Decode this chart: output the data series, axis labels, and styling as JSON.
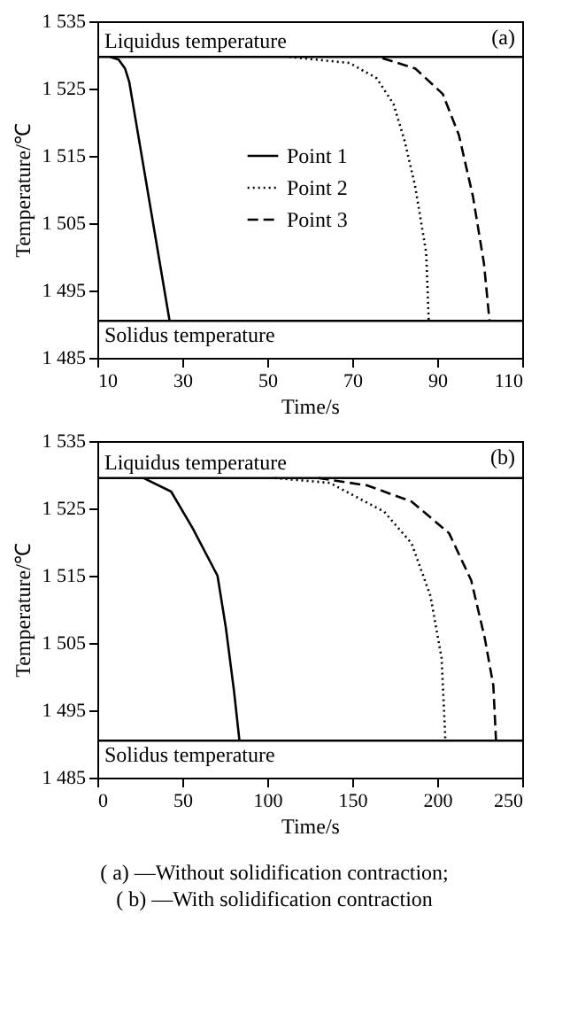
{
  "chart_data": [
    {
      "type": "line",
      "xlabel": "Time/s",
      "ylabel": "Temperature/℃",
      "xlim": [
        10,
        110
      ],
      "xticks": [
        10,
        30,
        50,
        70,
        90,
        110
      ],
      "ylim": [
        1485,
        1535
      ],
      "yticks": [
        {
          "value": 1485,
          "label": "1 485"
        },
        {
          "value": 1495,
          "label": "1 495"
        },
        {
          "value": 1505,
          "label": "1 505"
        },
        {
          "value": 1515,
          "label": "1 515"
        },
        {
          "value": 1525,
          "label": "1 525"
        },
        {
          "value": 1535,
          "label": "1 535"
        }
      ],
      "grid": false,
      "legend": "center",
      "marker": "none",
      "annotations": [
        "(a)"
      ],
      "ref_lines": [
        {
          "axis": "y",
          "value": 1529.7,
          "label": "Liquidus temperature",
          "color": "#000000"
        },
        {
          "axis": "y",
          "value": 1490.5,
          "label": "Solidus temperature",
          "color": "#000000"
        }
      ],
      "series": [
        {
          "name": "Point 1",
          "color": "#000000",
          "line_style": "solid",
          "x": [
            13,
            15,
            16.5,
            17.5,
            27
          ],
          "values": [
            1529.7,
            1529.3,
            1528,
            1526,
            1490.5
          ]
        },
        {
          "name": "Point 2",
          "color": "#000000",
          "line_style": "dotted",
          "x": [
            55.2,
            69.4,
            75.8,
            79.7,
            82.3,
            84.8,
            87.4,
            88
          ],
          "values": [
            1529.7,
            1528.8,
            1526.5,
            1522.7,
            1517.3,
            1510.5,
            1500.6,
            1490.5
          ]
        },
        {
          "name": "Point 3",
          "color": "#000000",
          "line_style": "dashed",
          "x": [
            77.1,
            84.8,
            91.3,
            95.1,
            98.4,
            101,
            102.3
          ],
          "values": [
            1529.5,
            1528,
            1524.2,
            1518.1,
            1509,
            1499,
            1490.5
          ]
        }
      ]
    },
    {
      "type": "line",
      "xlabel": "Time/s",
      "ylabel": "Temperature/℃",
      "xlim": [
        0,
        250
      ],
      "xticks": [
        0,
        50,
        100,
        150,
        200,
        250
      ],
      "ylim": [
        1485,
        1535
      ],
      "yticks": [
        {
          "value": 1485,
          "label": "1 485"
        },
        {
          "value": 1495,
          "label": "1 495"
        },
        {
          "value": 1505,
          "label": "1 505"
        },
        {
          "value": 1515,
          "label": "1 515"
        },
        {
          "value": 1525,
          "label": "1 525"
        },
        {
          "value": 1535,
          "label": "1 535"
        }
      ],
      "grid": false,
      "legend": "center",
      "marker": "none",
      "annotations": [
        "(b)",
        "( a) —Without solidification contraction;",
        "( b) —With solidification contraction"
      ],
      "ref_lines": [
        {
          "axis": "y",
          "value": 1529.5,
          "label": "Liquidus temperature",
          "color": "#000000"
        },
        {
          "axis": "y",
          "value": 1490.5,
          "label": "Solidus temperature",
          "color": "#000000"
        }
      ],
      "series": [
        {
          "name": "Point 1",
          "color": "#000000",
          "line_style": "solid",
          "x": [
            27.3,
            43.4,
            56,
            70.7,
            75.6,
            80.4,
            83.6
          ],
          "values": [
            1529.5,
            1527.5,
            1522.1,
            1515,
            1507.3,
            1497.9,
            1490.5
          ]
        },
        {
          "name": "Point 2",
          "color": "#000000",
          "line_style": "dotted",
          "x": [
            104.5,
            136.7,
            168.8,
            184.9,
            196,
            202.6,
            204.8
          ],
          "values": [
            1529.5,
            1528.8,
            1524.5,
            1519.8,
            1512,
            1502.7,
            1490.5
          ]
        },
        {
          "name": "Point 3",
          "color": "#000000",
          "line_style": "dashed",
          "x": [
            130,
            159,
            185,
            207,
            220,
            228,
            233,
            234.6
          ],
          "values": [
            1529.5,
            1528.4,
            1526,
            1521.3,
            1514.3,
            1505.7,
            1498.7,
            1490.5
          ]
        }
      ]
    }
  ]
}
